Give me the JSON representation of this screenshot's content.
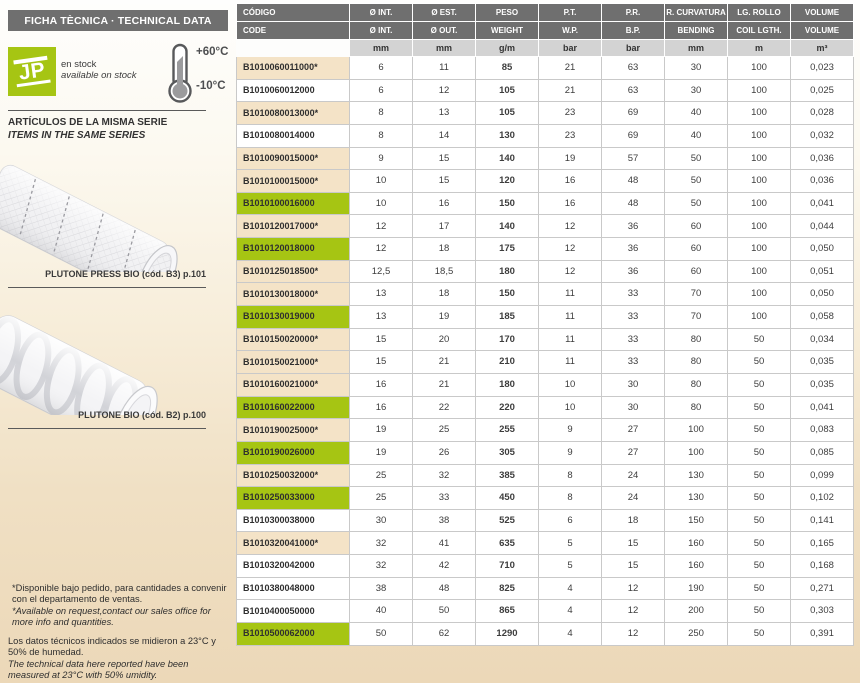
{
  "colors": {
    "green": "#a6c513",
    "beige": "#f4e3c7",
    "header_gray": "#6f6f6f",
    "units_gray": "#d3d3d3",
    "page_bottom_tan": "#ecd8b8"
  },
  "sidebar": {
    "header_title": "FICHA TÈCNICA · TECHNICAL DATA",
    "logo_text": "JP",
    "stock_line_es": "en stock",
    "stock_line_en": "available on stock",
    "temp_max": "+60°C",
    "temp_min": "-10°C",
    "series_title_es": "ARTÍCULOS DE LA MISMA SERIE",
    "series_title_en": "ITEMS IN THE SAME SERIES",
    "product1_caption": "PLUTONE PRESS BIO (cód. B3) p.101",
    "product2_caption": "PLUTONE BIO (cód. B2) p.100",
    "footnote_es_1": "*Disponible bajo pedido, para cantidades a convenir con el departamento de ventas.",
    "footnote_en_1": "*Available on request,contact our sales office for more info and quantities.",
    "footnote_es_2": "Los datos técnicos indicados se midieron a 23°C y 50% de humedad.",
    "footnote_en_2": "The technical data here reported have been measured at 23°C with 50% umidity."
  },
  "table": {
    "header_row1": [
      "CÓDIGO",
      "Ø INT.",
      "Ø EST.",
      "PESO",
      "P.T.",
      "P.R.",
      "R. CURVATURA",
      "LG. ROLLO",
      "VOLUME"
    ],
    "header_row2": [
      "CODE",
      "Ø INT.",
      "Ø OUT.",
      "WEIGHT",
      "W.P.",
      "B.P.",
      "BENDING",
      "COIL LGTH.",
      "VOLUME"
    ],
    "units": [
      "",
      "mm",
      "mm",
      "g/m",
      "bar",
      "bar",
      "mm",
      "m",
      "m³"
    ],
    "rows": [
      {
        "code": "B1010060011000*",
        "bg": "beige",
        "values": [
          "6",
          "11",
          "85",
          "21",
          "63",
          "30",
          "100",
          "0,023"
        ]
      },
      {
        "code": "B1010060012000",
        "bg": "white",
        "values": [
          "6",
          "12",
          "105",
          "21",
          "63",
          "30",
          "100",
          "0,025"
        ]
      },
      {
        "code": "B1010080013000*",
        "bg": "beige",
        "values": [
          "8",
          "13",
          "105",
          "23",
          "69",
          "40",
          "100",
          "0,028"
        ]
      },
      {
        "code": "B1010080014000",
        "bg": "white",
        "values": [
          "8",
          "14",
          "130",
          "23",
          "69",
          "40",
          "100",
          "0,032"
        ]
      },
      {
        "code": "B1010090015000*",
        "bg": "beige",
        "values": [
          "9",
          "15",
          "140",
          "19",
          "57",
          "50",
          "100",
          "0,036"
        ]
      },
      {
        "code": "B1010100015000*",
        "bg": "beige",
        "values": [
          "10",
          "15",
          "120",
          "16",
          "48",
          "50",
          "100",
          "0,036"
        ]
      },
      {
        "code": "B1010100016000",
        "bg": "green",
        "values": [
          "10",
          "16",
          "150",
          "16",
          "48",
          "50",
          "100",
          "0,041"
        ]
      },
      {
        "code": "B1010120017000*",
        "bg": "beige",
        "values": [
          "12",
          "17",
          "140",
          "12",
          "36",
          "60",
          "100",
          "0,044"
        ]
      },
      {
        "code": "B1010120018000",
        "bg": "green",
        "values": [
          "12",
          "18",
          "175",
          "12",
          "36",
          "60",
          "100",
          "0,050"
        ]
      },
      {
        "code": "B1010125018500*",
        "bg": "beige",
        "values": [
          "12,5",
          "18,5",
          "180",
          "12",
          "36",
          "60",
          "100",
          "0,051"
        ]
      },
      {
        "code": "B1010130018000*",
        "bg": "beige",
        "values": [
          "13",
          "18",
          "150",
          "11",
          "33",
          "70",
          "100",
          "0,050"
        ]
      },
      {
        "code": "B1010130019000",
        "bg": "green",
        "values": [
          "13",
          "19",
          "185",
          "11",
          "33",
          "70",
          "100",
          "0,058"
        ]
      },
      {
        "code": "B1010150020000*",
        "bg": "beige",
        "values": [
          "15",
          "20",
          "170",
          "11",
          "33",
          "80",
          "50",
          "0,034"
        ]
      },
      {
        "code": "B1010150021000*",
        "bg": "beige",
        "values": [
          "15",
          "21",
          "210",
          "11",
          "33",
          "80",
          "50",
          "0,035"
        ]
      },
      {
        "code": "B1010160021000*",
        "bg": "beige",
        "values": [
          "16",
          "21",
          "180",
          "10",
          "30",
          "80",
          "50",
          "0,035"
        ]
      },
      {
        "code": "B1010160022000",
        "bg": "green",
        "values": [
          "16",
          "22",
          "220",
          "10",
          "30",
          "80",
          "50",
          "0,041"
        ]
      },
      {
        "code": "B1010190025000*",
        "bg": "beige",
        "values": [
          "19",
          "25",
          "255",
          "9",
          "27",
          "100",
          "50",
          "0,083"
        ]
      },
      {
        "code": "B1010190026000",
        "bg": "green",
        "values": [
          "19",
          "26",
          "305",
          "9",
          "27",
          "100",
          "50",
          "0,085"
        ]
      },
      {
        "code": "B1010250032000*",
        "bg": "beige",
        "values": [
          "25",
          "32",
          "385",
          "8",
          "24",
          "130",
          "50",
          "0,099"
        ]
      },
      {
        "code": "B1010250033000",
        "bg": "green",
        "values": [
          "25",
          "33",
          "450",
          "8",
          "24",
          "130",
          "50",
          "0,102"
        ]
      },
      {
        "code": "B1010300038000",
        "bg": "white",
        "values": [
          "30",
          "38",
          "525",
          "6",
          "18",
          "150",
          "50",
          "0,141"
        ]
      },
      {
        "code": "B1010320041000*",
        "bg": "beige",
        "values": [
          "32",
          "41",
          "635",
          "5",
          "15",
          "160",
          "50",
          "0,165"
        ]
      },
      {
        "code": "B1010320042000",
        "bg": "white",
        "values": [
          "32",
          "42",
          "710",
          "5",
          "15",
          "160",
          "50",
          "0,168"
        ]
      },
      {
        "code": "B1010380048000",
        "bg": "white",
        "values": [
          "38",
          "48",
          "825",
          "4",
          "12",
          "190",
          "50",
          "0,271"
        ]
      },
      {
        "code": "B1010400050000",
        "bg": "white",
        "values": [
          "40",
          "50",
          "865",
          "4",
          "12",
          "200",
          "50",
          "0,303"
        ]
      },
      {
        "code": "B1010500062000",
        "bg": "green",
        "values": [
          "50",
          "62",
          "1290",
          "4",
          "12",
          "250",
          "50",
          "0,391"
        ]
      }
    ]
  }
}
